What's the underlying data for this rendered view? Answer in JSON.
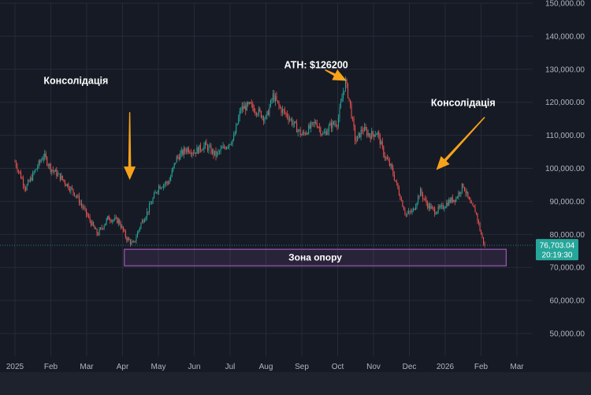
{
  "chart_data": {
    "type": "candlestick",
    "ylim": [
      45000,
      150000
    ],
    "y_ticks": [
      150000,
      140000,
      130000,
      120000,
      110000,
      100000,
      90000,
      80000,
      70000,
      60000,
      50000
    ],
    "y_tick_labels": [
      "150,000.00",
      "140,000.00",
      "130,000.00",
      "120,000.00",
      "110,000.00",
      "100,000.00",
      "90,000.00",
      "80,000.00",
      "70,000.00",
      "60,000.00",
      "50,000.00"
    ],
    "x_ticks": [
      {
        "label": "2025",
        "month": 0
      },
      {
        "label": "Feb",
        "month": 1
      },
      {
        "label": "Mar",
        "month": 2
      },
      {
        "label": "Apr",
        "month": 3
      },
      {
        "label": "May",
        "month": 4
      },
      {
        "label": "Jun",
        "month": 5
      },
      {
        "label": "Jul",
        "month": 6
      },
      {
        "label": "Aug",
        "month": 7
      },
      {
        "label": "Sep",
        "month": 8
      },
      {
        "label": "Oct",
        "month": 9
      },
      {
        "label": "Nov",
        "month": 10
      },
      {
        "label": "Dec",
        "month": 11
      },
      {
        "label": "2026",
        "month": 12
      },
      {
        "label": "Feb",
        "month": 13
      },
      {
        "label": "Mar",
        "month": 14
      }
    ],
    "price_path": [
      [
        0.0,
        102000
      ],
      [
        0.3,
        94000
      ],
      [
        0.55,
        99000
      ],
      [
        0.8,
        104000
      ],
      [
        1.0,
        100000
      ],
      [
        1.3,
        97000
      ],
      [
        1.7,
        92000
      ],
      [
        2.0,
        86000
      ],
      [
        2.3,
        80000
      ],
      [
        2.6,
        85000
      ],
      [
        2.9,
        84000
      ],
      [
        3.1,
        79000
      ],
      [
        3.3,
        76800
      ],
      [
        3.5,
        83000
      ],
      [
        3.7,
        87000
      ],
      [
        4.0,
        94500
      ],
      [
        4.3,
        96000
      ],
      [
        4.5,
        103000
      ],
      [
        4.8,
        106000
      ],
      [
        5.0,
        105000
      ],
      [
        5.3,
        107000
      ],
      [
        5.6,
        104000
      ],
      [
        5.9,
        107000
      ],
      [
        6.1,
        109000
      ],
      [
        6.3,
        118000
      ],
      [
        6.55,
        119000
      ],
      [
        6.8,
        117000
      ],
      [
        7.0,
        115000
      ],
      [
        7.2,
        122000
      ],
      [
        7.4,
        118000
      ],
      [
        7.6,
        116000
      ],
      [
        7.8,
        113000
      ],
      [
        8.0,
        110000
      ],
      [
        8.2,
        112000
      ],
      [
        8.4,
        114000
      ],
      [
        8.6,
        110000
      ],
      [
        8.8,
        113000
      ],
      [
        9.0,
        114000
      ],
      [
        9.15,
        123000
      ],
      [
        9.22,
        126200
      ],
      [
        9.35,
        119000
      ],
      [
        9.5,
        108000
      ],
      [
        9.7,
        112000
      ],
      [
        9.9,
        110000
      ],
      [
        10.1,
        111000
      ],
      [
        10.3,
        104000
      ],
      [
        10.5,
        100000
      ],
      [
        10.7,
        93000
      ],
      [
        10.9,
        86000
      ],
      [
        11.1,
        87000
      ],
      [
        11.3,
        93000
      ],
      [
        11.5,
        89000
      ],
      [
        11.7,
        87000
      ],
      [
        11.9,
        88000
      ],
      [
        12.1,
        90000
      ],
      [
        12.3,
        91000
      ],
      [
        12.5,
        95000
      ],
      [
        12.7,
        89000
      ],
      [
        12.85,
        87000
      ],
      [
        13.0,
        80000
      ],
      [
        13.1,
        76703
      ]
    ],
    "candle_count": 395,
    "colors": {
      "up": "#26a69a",
      "down": "#ef5350",
      "zone": "#9b59b6",
      "arrow": "#f7a21b",
      "price_tag": "#26a69a"
    },
    "support_zone": {
      "label": "Зона опору",
      "y_low": 70500,
      "y_high": 75500,
      "x_start_month": 3.05,
      "x_end_month": 13.7
    },
    "current_price": {
      "value": "76,703.04",
      "countdown": "20:19:30",
      "y": 76703
    },
    "annotations": [
      {
        "text": "Консолідація",
        "label_month": 1.7,
        "label_y": 125500
      },
      {
        "text": "ATH: $126200",
        "label_month": 8.4,
        "label_y": 130300
      },
      {
        "text": "Консолідація",
        "label_month": 12.5,
        "label_y": 118800
      }
    ],
    "arrows": [
      {
        "from_month": 3.2,
        "from_y": 117000,
        "to_month": 3.2,
        "to_y": 96500
      },
      {
        "from_month": 8.65,
        "from_y": 129800,
        "to_month": 9.25,
        "to_y": 126500
      },
      {
        "from_month": 13.1,
        "from_y": 115500,
        "to_month": 11.75,
        "to_y": 99500
      }
    ]
  }
}
